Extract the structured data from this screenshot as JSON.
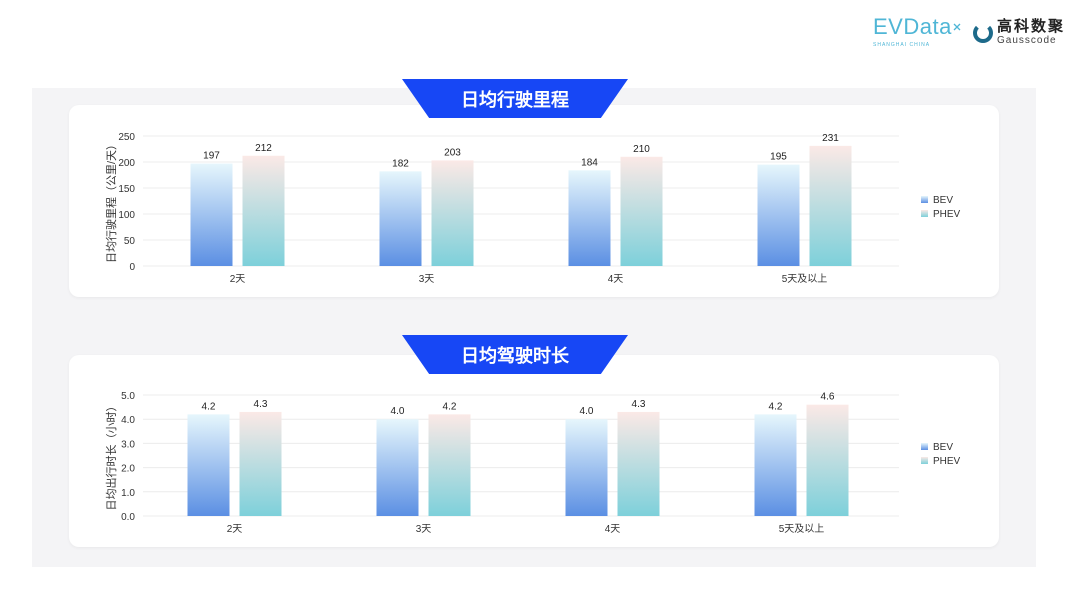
{
  "logos": {
    "evdata": "EVData",
    "evdata_sub": "SHANGHAI CHINA",
    "gauss_cn": "高科数聚",
    "gauss_en": "Gausscode"
  },
  "colors": {
    "banner": "#1747f5",
    "bev_top": "#e6f6fc",
    "bev_bottom": "#5b8fe3",
    "phev_top": "#fbe9e6",
    "phev_bottom": "#7dd0da"
  },
  "chart_data": [
    {
      "type": "bar",
      "title": "日均行驶里程",
      "ylabel": "日均行驶里程（公里/天）",
      "categories": [
        "2天",
        "3天",
        "4天",
        "5天及以上"
      ],
      "ylim": [
        0,
        250
      ],
      "yticks": [
        0,
        50,
        100,
        150,
        200,
        250
      ],
      "decimals": 0,
      "grid": true,
      "legend": "right",
      "series": [
        {
          "name": "BEV",
          "values": [
            197,
            182,
            184,
            195
          ]
        },
        {
          "name": "PHEV",
          "values": [
            212,
            203,
            210,
            231
          ]
        }
      ]
    },
    {
      "type": "bar",
      "title": "日均驾驶时长",
      "ylabel": "日均出行时长（小时）",
      "categories": [
        "2天",
        "3天",
        "4天",
        "5天及以上"
      ],
      "ylim": [
        0,
        5
      ],
      "yticks": [
        0,
        1,
        2,
        3,
        4,
        5
      ],
      "decimals": 1,
      "grid": true,
      "legend": "right",
      "series": [
        {
          "name": "BEV",
          "values": [
            4.2,
            4.0,
            4.0,
            4.2
          ]
        },
        {
          "name": "PHEV",
          "values": [
            4.3,
            4.2,
            4.3,
            4.6
          ]
        }
      ]
    }
  ]
}
